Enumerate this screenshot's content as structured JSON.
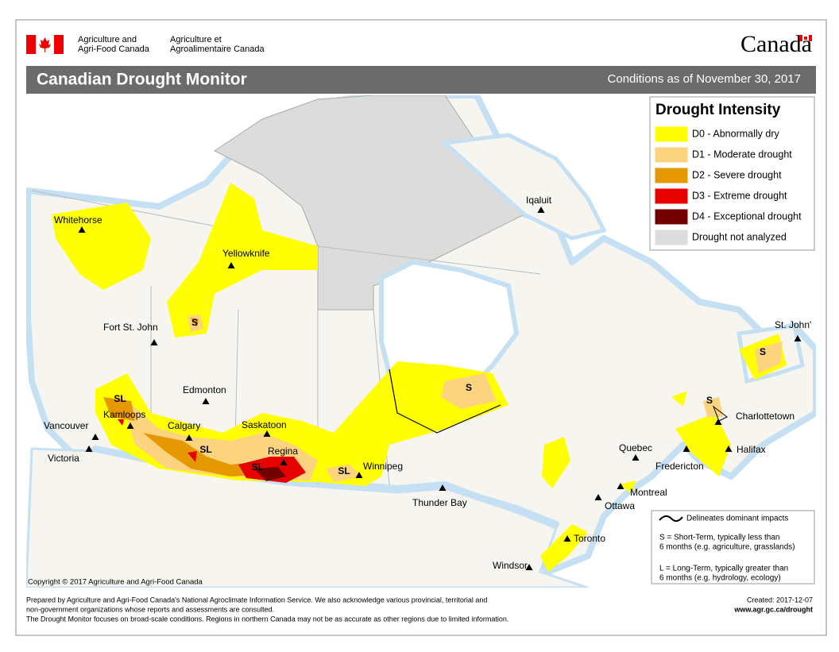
{
  "header": {
    "agency_en": [
      "Agriculture and",
      "Agri-Food Canada"
    ],
    "agency_fr": [
      "Agriculture et",
      "Agroalimentaire Canada"
    ],
    "wordmark": "Canada"
  },
  "title": "Canadian Drought Monitor",
  "conditions": "Conditions as of November 30, 2017",
  "legend": {
    "title": "Drought Intensity",
    "items": [
      {
        "label": "D0 - Abnormally dry",
        "color": "#ffff00"
      },
      {
        "label": "D1 - Moderate drought",
        "color": "#fcd37f"
      },
      {
        "label": "D2 - Severe drought",
        "color": "#e69800"
      },
      {
        "label": "D3 - Extreme drought",
        "color": "#e60000"
      },
      {
        "label": "D4 - Exceptional drought",
        "color": "#730000"
      },
      {
        "label": "Drought not analyzed",
        "color": "#dcdcdc"
      }
    ]
  },
  "cities": [
    "Whitehorse",
    "Yellowknife",
    "Iqaluit",
    "Fort St. John",
    "Edmonton",
    "Kamloops",
    "Vancouver",
    "Victoria",
    "Calgary",
    "Saskatoon",
    "Regina",
    "Winnipeg",
    "Thunder Bay",
    "Quebec",
    "Montreal",
    "Ottawa",
    "Fredericton",
    "Halifax",
    "Charlottetown",
    "St. John'",
    "Toronto",
    "Windsor"
  ],
  "impact_labels": [
    "S",
    "SL",
    "SL",
    "SL",
    "SL",
    "S",
    "S",
    "S"
  ],
  "impact_legend": {
    "line": "Delineates dominant impacts",
    "short_term": [
      "S = Short-Term, typically less than",
      "6 months (e.g. agriculture, grasslands)"
    ],
    "long_term": [
      "L = Long-Term, typically greater  than",
      "6 months (e.g. hydrology, ecology)"
    ]
  },
  "copyright": "Copyright © 2017 Agriculture and Agri-Food Canada",
  "footer": {
    "notes": [
      "Prepared by Agriculture and Agri-Food Canada's National Agroclimate Information Service.  We also acknowledge various provincial, territorial and",
      "non-government organizations whose reports and assessments are consulted.",
      "The Drought Monitor focuses on broad-scale conditions.  Regions in northern Canada may not be as accurate as other regions due to limited information."
    ],
    "created": "Created: 2017-12-07",
    "url": "www.agr.gc.ca/drought"
  }
}
